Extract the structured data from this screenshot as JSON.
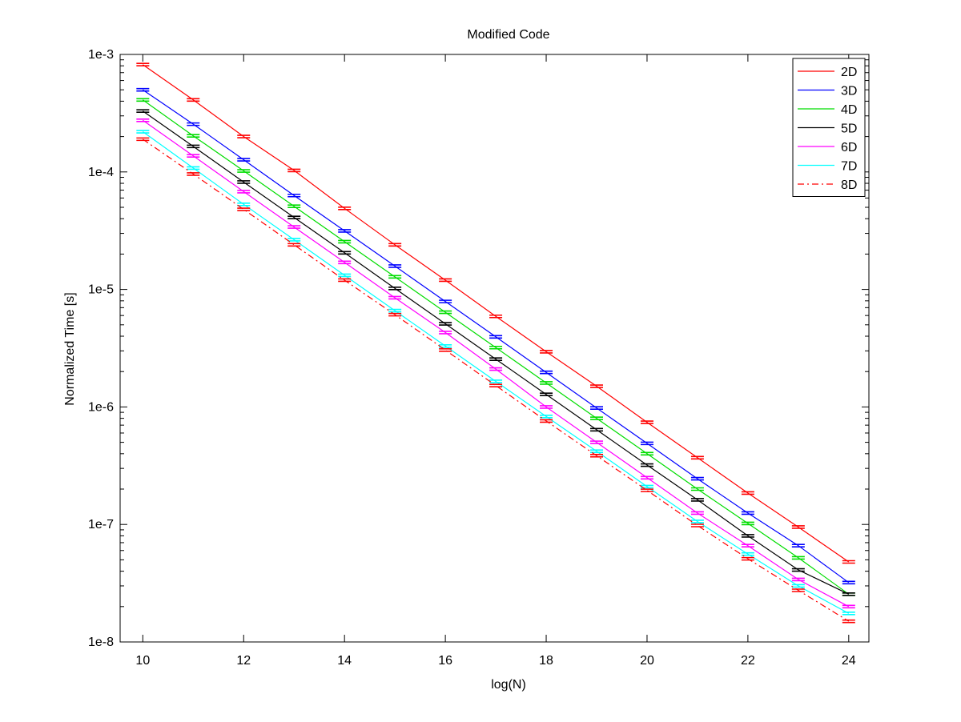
{
  "chart_data": {
    "type": "line",
    "title": "Modified Code",
    "xlabel": "log(N)",
    "ylabel": "Normalized Time [s]",
    "xlim": [
      9.55,
      24.4
    ],
    "ylim": [
      1e-08,
      0.001
    ],
    "yscale": "log",
    "grid": false,
    "legend_position": "top-right",
    "x_ticks": [
      10,
      12,
      14,
      16,
      18,
      20,
      22,
      24
    ],
    "x_tick_labels": [
      "10",
      "12",
      "14",
      "16",
      "18",
      "20",
      "22",
      "24"
    ],
    "y_ticks": [
      1e-08,
      1e-07,
      1e-06,
      1e-05,
      0.0001,
      0.001
    ],
    "y_tick_labels": [
      "1e-8",
      "1e-7",
      "1e-6",
      "1e-5",
      "1e-4",
      "1e-3"
    ],
    "x": [
      10,
      11,
      12,
      13,
      14,
      15,
      16,
      17,
      18,
      19,
      20,
      21,
      22,
      23,
      24
    ],
    "error_bars": true,
    "series": [
      {
        "name": "2D",
        "color": "#ff0000",
        "dash": "solid",
        "values": [
          0.00082,
          0.00041,
          0.0002,
          0.000103,
          4.9e-05,
          2.4e-05,
          1.2e-05,
          5.9e-06,
          2.95e-06,
          1.5e-06,
          7.4e-07,
          3.7e-07,
          1.85e-07,
          9.5e-08,
          4.8e-08
        ]
      },
      {
        "name": "3D",
        "color": "#0000ff",
        "dash": "solid",
        "values": [
          0.0005,
          0.000255,
          0.000127,
          6.3e-05,
          3.15e-05,
          1.58e-05,
          7.9e-06,
          3.95e-06,
          1.97e-06,
          9.8e-07,
          4.9e-07,
          2.45e-07,
          1.25e-07,
          6.6e-08,
          3.2e-08
        ]
      },
      {
        "name": "4D",
        "color": "#00dd00",
        "dash": "solid",
        "values": [
          0.00041,
          0.000203,
          0.000102,
          5.1e-05,
          2.55e-05,
          1.28e-05,
          6.4e-06,
          3.2e-06,
          1.6e-06,
          8e-07,
          4e-07,
          2e-07,
          1.02e-07,
          5.2e-08,
          2.55e-08
        ]
      },
      {
        "name": "5D",
        "color": "#000000",
        "dash": "solid",
        "values": [
          0.00033,
          0.000165,
          8.2e-05,
          4.1e-05,
          2.05e-05,
          1.02e-05,
          5.1e-06,
          2.55e-06,
          1.28e-06,
          6.4e-07,
          3.2e-07,
          1.62e-07,
          8e-08,
          4.1e-08,
          2.55e-08
        ]
      },
      {
        "name": "6D",
        "color": "#ff00ff",
        "dash": "solid",
        "values": [
          0.000275,
          0.000137,
          6.8e-05,
          3.4e-05,
          1.7e-05,
          8.5e-06,
          4.3e-06,
          2.1e-06,
          1e-06,
          5e-07,
          2.5e-07,
          1.25e-07,
          6.6e-08,
          3.4e-08,
          2e-08
        ]
      },
      {
        "name": "7D",
        "color": "#00ffff",
        "dash": "solid",
        "values": [
          0.00022,
          0.000108,
          5.3e-05,
          2.65e-05,
          1.32e-05,
          6.6e-06,
          3.3e-06,
          1.65e-06,
          8.3e-07,
          4.2e-07,
          2.1e-07,
          1.06e-07,
          5.6e-08,
          3e-08,
          1.75e-08
        ]
      },
      {
        "name": "8D",
        "color": "#ff0000",
        "dash": "dashdot",
        "values": [
          0.00019,
          9.6e-05,
          4.8e-05,
          2.4e-05,
          1.2e-05,
          6.1e-06,
          3.05e-06,
          1.52e-06,
          7.6e-07,
          3.85e-07,
          1.95e-07,
          9.8e-08,
          5.1e-08,
          2.75e-08,
          1.5e-08
        ]
      }
    ]
  }
}
